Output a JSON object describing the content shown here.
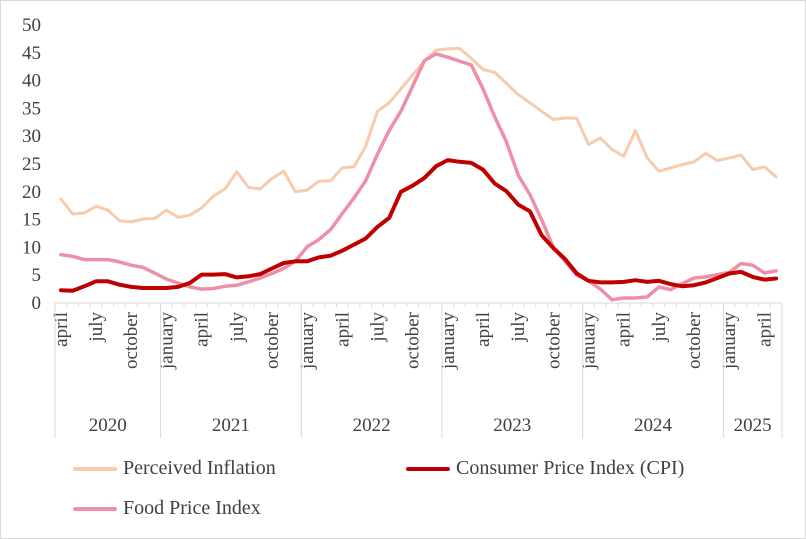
{
  "chart_data": {
    "type": "line",
    "yticks": [
      "0",
      "5",
      "10",
      "15",
      "20",
      "25",
      "30",
      "35",
      "40",
      "45",
      "50"
    ],
    "ylim": [
      0,
      50
    ],
    "grid": false,
    "legend_position": "bottom",
    "months": [
      "2020-04",
      "2020-05",
      "2020-06",
      "2020-07",
      "2020-08",
      "2020-09",
      "2020-10",
      "2020-11",
      "2020-12",
      "2021-01",
      "2021-02",
      "2021-03",
      "2021-04",
      "2021-05",
      "2021-06",
      "2021-07",
      "2021-08",
      "2021-09",
      "2021-10",
      "2021-11",
      "2021-12",
      "2022-01",
      "2022-02",
      "2022-03",
      "2022-04",
      "2022-05",
      "2022-06",
      "2022-07",
      "2022-08",
      "2022-09",
      "2022-10",
      "2022-11",
      "2022-12",
      "2023-01",
      "2023-02",
      "2023-03",
      "2023-04",
      "2023-05",
      "2023-06",
      "2023-07",
      "2023-08",
      "2023-09",
      "2023-10",
      "2023-11",
      "2023-12",
      "2024-01",
      "2024-02",
      "2024-03",
      "2024-04",
      "2024-05",
      "2024-06",
      "2024-07",
      "2024-08",
      "2024-09",
      "2024-10",
      "2024-11",
      "2024-12",
      "2025-01",
      "2025-02",
      "2025-03",
      "2025-04",
      "2025-05"
    ],
    "month_labels": [
      {
        "index": 0,
        "label": "april"
      },
      {
        "index": 3,
        "label": "july"
      },
      {
        "index": 6,
        "label": "october"
      },
      {
        "index": 9,
        "label": "january"
      },
      {
        "index": 12,
        "label": "april"
      },
      {
        "index": 15,
        "label": "july"
      },
      {
        "index": 18,
        "label": "october"
      },
      {
        "index": 21,
        "label": "january"
      },
      {
        "index": 24,
        "label": "april"
      },
      {
        "index": 27,
        "label": "july"
      },
      {
        "index": 30,
        "label": "october"
      },
      {
        "index": 33,
        "label": "january"
      },
      {
        "index": 36,
        "label": "april"
      },
      {
        "index": 39,
        "label": "july"
      },
      {
        "index": 42,
        "label": "october"
      },
      {
        "index": 45,
        "label": "january"
      },
      {
        "index": 48,
        "label": "april"
      },
      {
        "index": 51,
        "label": "july"
      },
      {
        "index": 54,
        "label": "october"
      },
      {
        "index": 57,
        "label": "january"
      },
      {
        "index": 60,
        "label": "april"
      }
    ],
    "years": [
      {
        "label": "2020",
        "start": 0,
        "end": 8
      },
      {
        "label": "2021",
        "start": 9,
        "end": 20
      },
      {
        "label": "2022",
        "start": 21,
        "end": 32
      },
      {
        "label": "2023",
        "start": 33,
        "end": 44
      },
      {
        "label": "2024",
        "start": 45,
        "end": 56
      },
      {
        "label": "2025",
        "start": 57,
        "end": 61
      }
    ],
    "series": [
      {
        "name": "Perceived Inflation",
        "color": "#f8cbad",
        "values": [
          18.7,
          16.0,
          16.2,
          17.4,
          16.7,
          14.8,
          14.6,
          15.1,
          15.2,
          16.7,
          15.4,
          15.8,
          17.1,
          19.2,
          20.5,
          23.6,
          20.8,
          20.5,
          22.4,
          23.7,
          20.0,
          20.3,
          21.9,
          22.0,
          24.3,
          24.5,
          28.2,
          34.5,
          36.0,
          38.5,
          41.0,
          43.5,
          45.5,
          45.7,
          45.8,
          44.0,
          42.0,
          41.5,
          39.5,
          37.5,
          36.0,
          34.5,
          33.0,
          33.3,
          33.2,
          28.5,
          29.7,
          27.6,
          26.4,
          31.0,
          26.1,
          23.7,
          24.3,
          24.9,
          25.4,
          26.9,
          25.6,
          26.1,
          26.6,
          24.0,
          24.5,
          22.7
        ]
      },
      {
        "name": "Consumer Price Index (CPI)",
        "color": "#c00000",
        "values": [
          2.3,
          2.2,
          3.0,
          3.9,
          3.9,
          3.3,
          2.9,
          2.7,
          2.7,
          2.7,
          2.9,
          3.6,
          5.1,
          5.1,
          5.2,
          4.6,
          4.8,
          5.2,
          6.2,
          7.2,
          7.5,
          7.5,
          8.2,
          8.5,
          9.4,
          10.5,
          11.6,
          13.7,
          15.3,
          20.0,
          21.1,
          22.5,
          24.6,
          25.7,
          25.4,
          25.2,
          24.0,
          21.5,
          20.1,
          17.7,
          16.5,
          12.2,
          9.9,
          7.9,
          5.3,
          4.0,
          3.7,
          3.7,
          3.8,
          4.1,
          3.8,
          4.0,
          3.4,
          3.0,
          3.2,
          3.7,
          4.5,
          5.3,
          5.6,
          4.7,
          4.2,
          4.4
        ]
      },
      {
        "name": "Food Price Index",
        "color": "#ee8fa8",
        "values": [
          8.7,
          8.4,
          7.8,
          7.8,
          7.8,
          7.4,
          6.8,
          6.4,
          5.4,
          4.3,
          3.6,
          2.9,
          2.5,
          2.6,
          3.0,
          3.2,
          3.8,
          4.5,
          5.3,
          6.2,
          7.5,
          10.1,
          11.4,
          13.2,
          16.1,
          18.9,
          22.0,
          26.8,
          31.0,
          34.5,
          39.0,
          43.6,
          44.8,
          44.2,
          43.5,
          42.8,
          38.5,
          33.5,
          29.0,
          23.0,
          19.5,
          15.0,
          10.0,
          7.5,
          5.0,
          4.0,
          2.5,
          0.6,
          0.9,
          0.9,
          1.1,
          2.9,
          2.4,
          3.5,
          4.5,
          4.7,
          5.1,
          5.5,
          7.1,
          6.8,
          5.4,
          5.8
        ]
      }
    ]
  }
}
